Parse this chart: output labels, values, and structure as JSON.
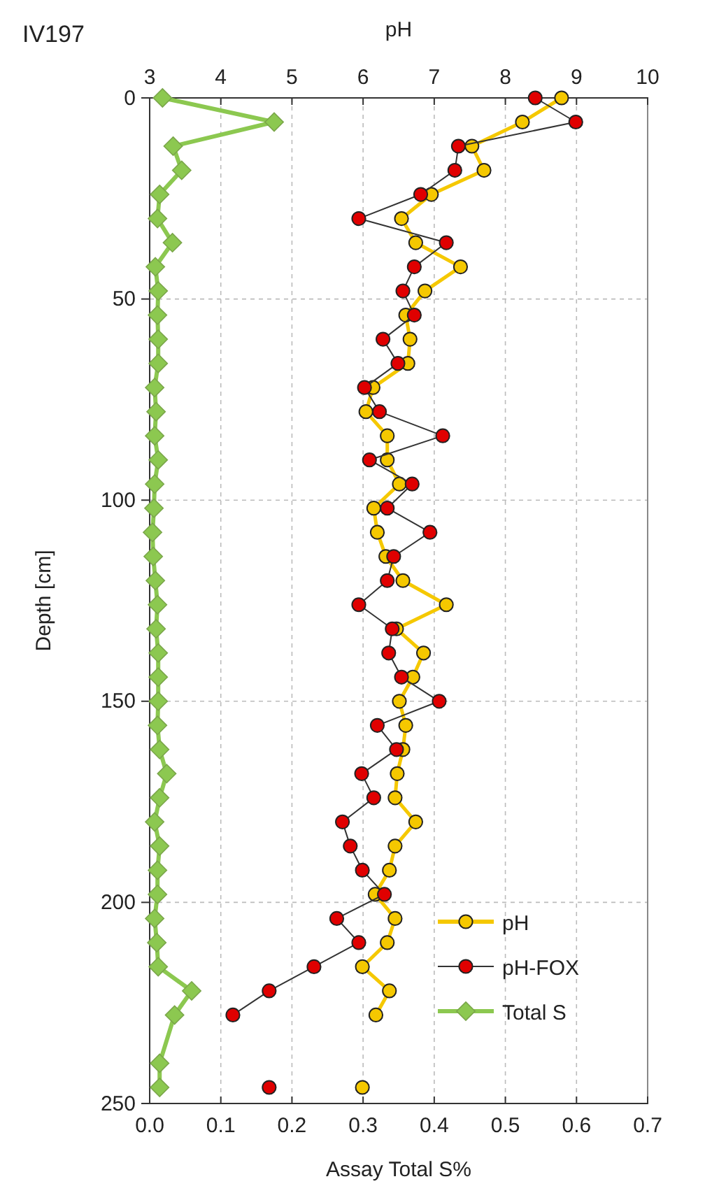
{
  "chart_data": {
    "type": "line",
    "orientation": "horizontal",
    "title": "IV197",
    "xlabel": "Assay Total S%",
    "x2label": "pH",
    "ylabel": "Depth [cm]",
    "x": [
      0,
      6,
      12,
      18,
      24,
      30,
      36,
      42,
      48,
      54,
      60,
      66,
      72,
      78,
      84,
      90,
      96,
      102,
      108,
      114,
      120,
      126,
      132,
      138,
      144,
      150,
      156,
      162,
      168,
      174,
      180,
      186,
      192,
      198,
      204,
      210,
      216,
      222,
      228,
      240,
      246
    ],
    "xlim": [
      0,
      0.7
    ],
    "xticks": [
      {
        "value": 0,
        "label": "0.0"
      },
      0.1,
      0.2,
      0.3,
      0.4,
      0.5,
      0.6,
      0.7
    ],
    "x2lim": [
      3,
      10
    ],
    "x2ticks": [
      3,
      4,
      5,
      6,
      7,
      8,
      9,
      10
    ],
    "ylim": [
      250,
      0
    ],
    "yticks": [
      0,
      50,
      100,
      150,
      200,
      250
    ],
    "grid": true,
    "legend": "bottom right",
    "series": [
      {
        "name": "pH",
        "color": "#f5c800",
        "axis": "x2",
        "marker": "circle",
        "values": [
          8.79,
          8.24,
          7.53,
          7.7,
          6.96,
          6.54,
          6.74,
          7.37,
          6.87,
          6.6,
          6.66,
          6.63,
          6.14,
          6.04,
          6.34,
          6.34,
          6.51,
          6.15,
          6.2,
          6.32,
          6.56,
          7.17,
          6.47,
          6.85,
          6.7,
          6.51,
          6.6,
          6.56,
          6.48,
          6.45,
          6.74,
          6.45,
          6.37,
          6.17,
          6.45,
          6.34,
          5.99,
          6.37,
          6.18,
          null,
          5.99
        ]
      },
      {
        "name": "pH-FOX",
        "color": "#e00000",
        "axis": "x2",
        "marker": "circle",
        "values": [
          8.42,
          8.99,
          7.34,
          7.29,
          6.81,
          5.94,
          7.17,
          6.72,
          6.56,
          6.72,
          6.28,
          6.49,
          6.02,
          6.23,
          7.12,
          6.09,
          6.69,
          6.34,
          6.94,
          6.43,
          6.34,
          5.94,
          6.41,
          6.36,
          6.54,
          7.07,
          6.2,
          6.47,
          5.98,
          6.15,
          5.71,
          5.82,
          5.99,
          6.3,
          5.63,
          5.94,
          5.31,
          4.68,
          4.17,
          null,
          4.68
        ]
      },
      {
        "name": "Total S",
        "color": "#8cc850",
        "marker": "diamond",
        "values": [
          0.018,
          0.175,
          0.033,
          0.045,
          0.014,
          0.011,
          0.032,
          0.008,
          0.012,
          0.011,
          0.012,
          0.012,
          0.007,
          0.009,
          0.007,
          0.012,
          0.007,
          0.006,
          0.004,
          0.005,
          0.008,
          0.011,
          0.009,
          0.012,
          0.012,
          0.012,
          0.011,
          0.014,
          0.024,
          0.014,
          0.007,
          0.014,
          0.011,
          0.011,
          0.007,
          0.01,
          0.012,
          0.059,
          0.035,
          0.014,
          0.014
        ]
      }
    ]
  }
}
